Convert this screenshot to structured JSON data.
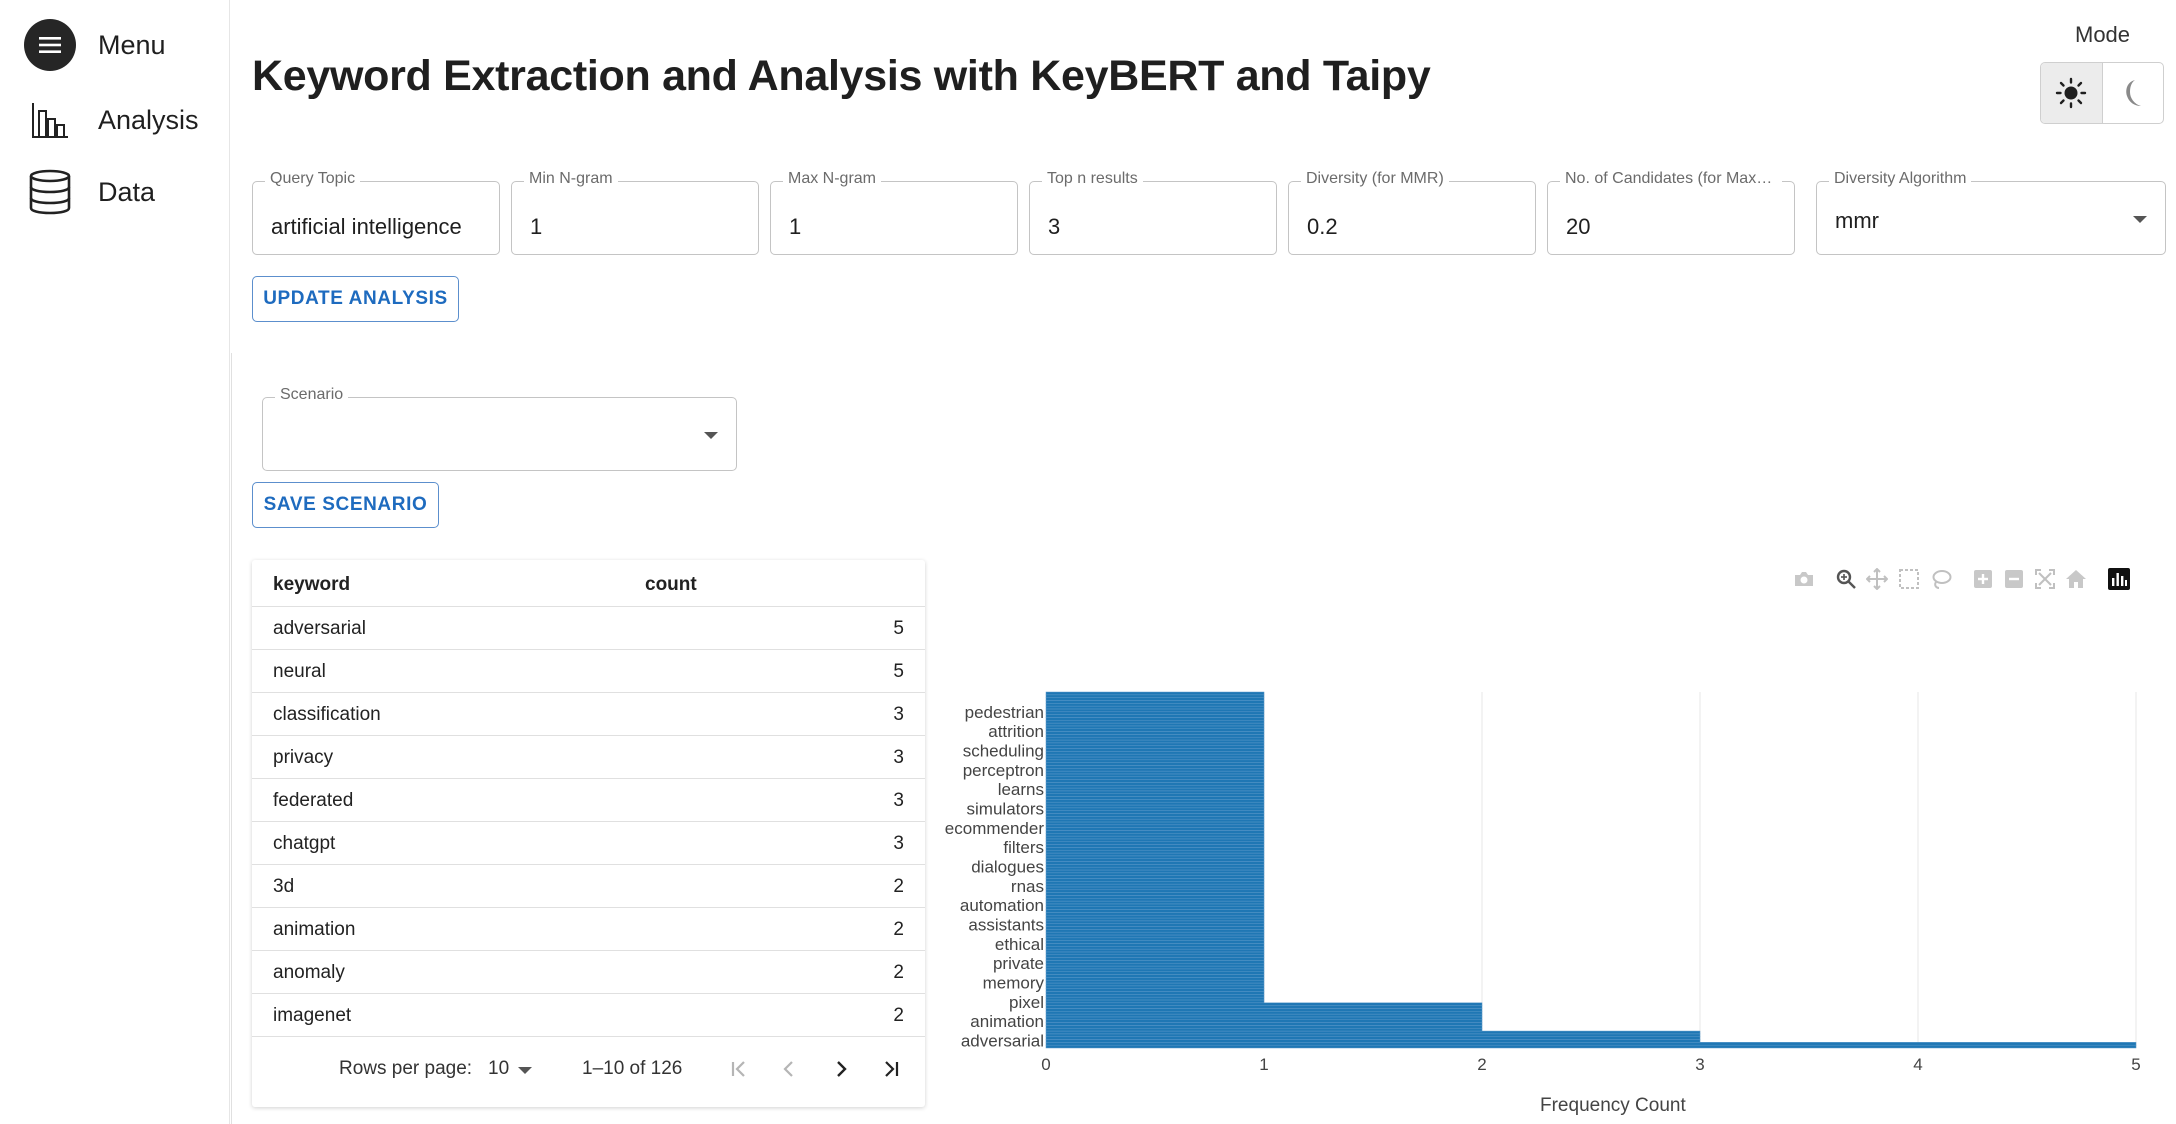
{
  "sidebar": {
    "items": [
      {
        "label": "Menu",
        "icon": "hamburger-icon"
      },
      {
        "label": "Analysis",
        "icon": "bar-chart-icon"
      },
      {
        "label": "Data",
        "icon": "database-icon"
      }
    ]
  },
  "header": {
    "title": "Keyword Extraction and Analysis with KeyBERT and Taipy",
    "mode_label": "Mode",
    "mode_options": [
      "light",
      "dark"
    ],
    "mode_selected": "light"
  },
  "fields": {
    "query_topic": {
      "label": "Query Topic",
      "value": "artificial intelligence"
    },
    "min_ngram": {
      "label": "Min N-gram",
      "value": "1"
    },
    "max_ngram": {
      "label": "Max N-gram",
      "value": "1"
    },
    "top_n": {
      "label": "Top n results",
      "value": "3"
    },
    "diversity": {
      "label": "Diversity (for MMR)",
      "value": "0.2"
    },
    "candidates": {
      "label": "No. of Candidates (for MaxSu...",
      "value": "20"
    },
    "algorithm": {
      "label": "Diversity Algorithm",
      "value": "mmr"
    }
  },
  "buttons": {
    "update": "UPDATE ANALYSIS",
    "save": "SAVE SCENARIO"
  },
  "scenario": {
    "label": "Scenario",
    "value": ""
  },
  "table": {
    "headers": [
      "keyword",
      "count"
    ],
    "rows": [
      {
        "keyword": "adversarial",
        "count": "5"
      },
      {
        "keyword": "neural",
        "count": "5"
      },
      {
        "keyword": "classification",
        "count": "3"
      },
      {
        "keyword": "privacy",
        "count": "3"
      },
      {
        "keyword": "federated",
        "count": "3"
      },
      {
        "keyword": "chatgpt",
        "count": "3"
      },
      {
        "keyword": "3d",
        "count": "2"
      },
      {
        "keyword": "animation",
        "count": "2"
      },
      {
        "keyword": "anomaly",
        "count": "2"
      },
      {
        "keyword": "imagenet",
        "count": "2"
      }
    ],
    "rows_per_page_label": "Rows per page:",
    "rows_per_page": "10",
    "range": "1–10 of 126"
  },
  "chart_data": {
    "type": "bar",
    "orientation": "horizontal",
    "xlabel": "Frequency Count",
    "ylabel": "",
    "xlim": [
      0,
      5
    ],
    "xticks": [
      0,
      1,
      2,
      3,
      4,
      5
    ],
    "grid": true,
    "color": "#1f77b4",
    "total_categories": 126,
    "y_tick_labels": [
      "pedestrian",
      "attrition",
      "scheduling",
      "perceptron",
      "learns",
      "simulators",
      "ecommender",
      "filters",
      "dialogues",
      "rnas",
      "automation",
      "assistants",
      "ethical",
      "private",
      "memory",
      "pixel",
      "animation",
      "adversarial"
    ],
    "value_groups": [
      {
        "value": 5,
        "count": 2
      },
      {
        "value": 3,
        "count": 4
      },
      {
        "value": 2,
        "count": 10
      },
      {
        "value": 1,
        "count": 110
      }
    ]
  },
  "modebar": [
    "camera-icon",
    "zoom-icon",
    "pan-icon",
    "box-select-icon",
    "lasso-icon",
    "zoom-in-icon",
    "zoom-out-icon",
    "autoscale-icon",
    "home-icon",
    "plotly-logo-icon"
  ]
}
